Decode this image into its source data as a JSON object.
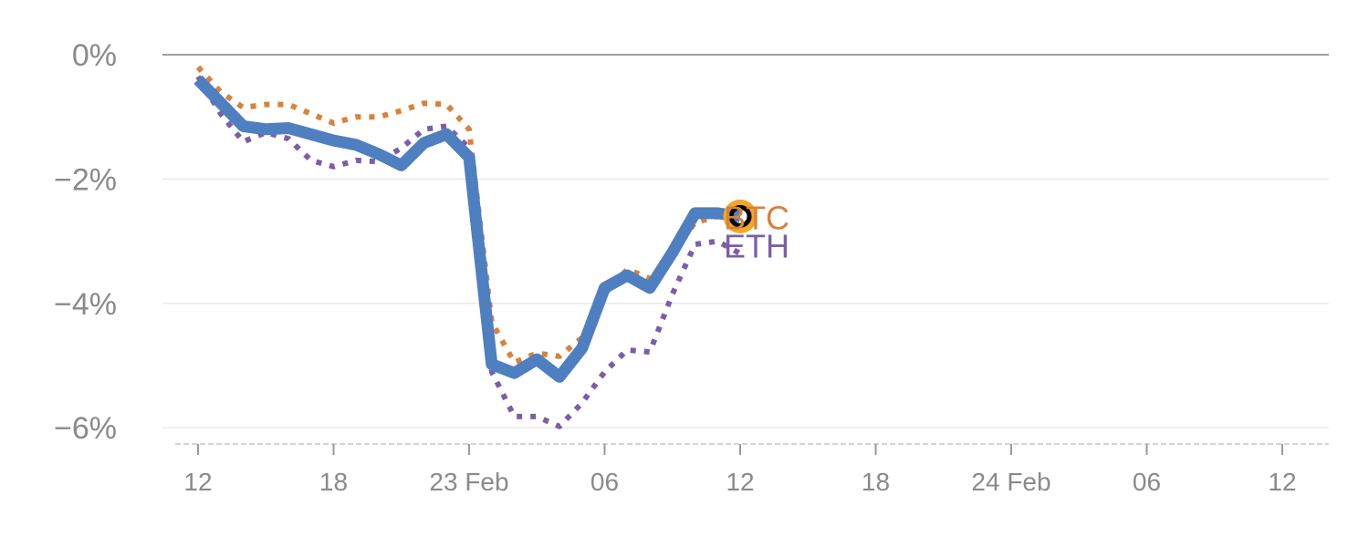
{
  "chart_data": {
    "type": "line",
    "title": "",
    "xlabel": "",
    "ylabel": "",
    "y_tick_labels": [
      "0%",
      "−2%",
      "−4%",
      "−6%"
    ],
    "y_tick_values": [
      0,
      -2,
      -4,
      -6
    ],
    "ylim": [
      -6.25,
      0
    ],
    "x_tick_labels": [
      "12",
      "18",
      "23 Feb",
      "06",
      "12",
      "18",
      "24 Feb",
      "06",
      "12"
    ],
    "x_tick_hours": [
      12,
      18,
      24,
      30,
      36,
      42,
      48,
      54,
      60
    ],
    "xlim": [
      11,
      62
    ],
    "grid": true,
    "legend": "inline end labels",
    "series": [
      {
        "name": "BTC",
        "color": "#4e7fc1",
        "style": "solid",
        "x": [
          12,
          14,
          15,
          16,
          17,
          18,
          19,
          20,
          21,
          22,
          23,
          24,
          25,
          26,
          27,
          28,
          29,
          30,
          31,
          32,
          33,
          34,
          35,
          36
        ],
        "y": [
          -0.4,
          -1.15,
          -1.2,
          -1.18,
          -1.28,
          -1.38,
          -1.45,
          -1.6,
          -1.78,
          -1.42,
          -1.28,
          -1.65,
          -4.98,
          -5.12,
          -4.9,
          -5.18,
          -4.72,
          -3.75,
          -3.55,
          -3.75,
          -3.18,
          -2.55,
          -2.55,
          -2.6
        ]
      },
      {
        "name": "BTC",
        "color": "#d9823a",
        "style": "dotted",
        "x": [
          12,
          13,
          14,
          15,
          16,
          17,
          18,
          19,
          20,
          21,
          22,
          23,
          24,
          25,
          26,
          27,
          28,
          29,
          30,
          31,
          32,
          33,
          34,
          35,
          36
        ],
        "y": [
          -0.2,
          -0.6,
          -0.85,
          -0.8,
          -0.8,
          -0.95,
          -1.1,
          -1.0,
          -1.0,
          -0.9,
          -0.78,
          -0.8,
          -1.2,
          -4.3,
          -4.95,
          -4.8,
          -4.85,
          -4.55,
          -3.85,
          -3.45,
          -3.6,
          -3.2,
          -2.7,
          -2.6,
          -2.62
        ]
      },
      {
        "name": "ETH",
        "color": "#7b5ea7",
        "style": "dotted",
        "x": [
          12,
          13,
          14,
          15,
          16,
          17,
          18,
          19,
          20,
          21,
          22,
          23,
          24,
          25,
          26,
          27,
          28,
          29,
          30,
          31,
          32,
          33,
          34,
          35,
          36
        ],
        "y": [
          -0.35,
          -0.95,
          -1.4,
          -1.25,
          -1.35,
          -1.7,
          -1.8,
          -1.7,
          -1.72,
          -1.5,
          -1.2,
          -1.15,
          -1.5,
          -5.1,
          -5.82,
          -5.82,
          -5.98,
          -5.6,
          -5.1,
          -4.75,
          -4.78,
          -3.85,
          -3.05,
          -3.0,
          -3.2
        ]
      }
    ],
    "marker": {
      "x": 36,
      "y": -2.6,
      "ring_color": "#f5a623",
      "core_color": "#000000"
    },
    "end_labels": [
      {
        "text": "BTC",
        "color": "#d9823a"
      },
      {
        "text": "ETH",
        "color": "#7b5ea7"
      }
    ]
  }
}
